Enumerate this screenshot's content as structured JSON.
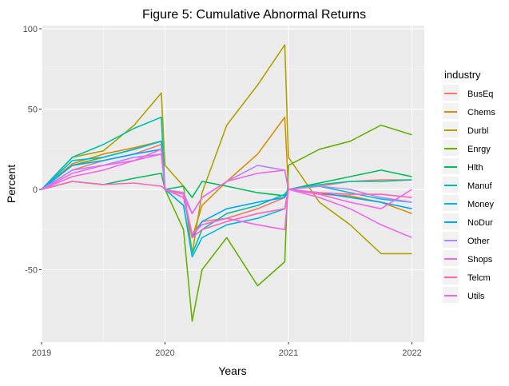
{
  "chart_data": {
    "type": "line",
    "title": "Figure 5: Cumulative Abnormal Returns",
    "xlabel": "Years",
    "ylabel": "Percent",
    "xlim": [
      2019.0,
      2022.1
    ],
    "ylim": [
      -95,
      102
    ],
    "x_ticks": [
      2019,
      2020,
      2021,
      2022
    ],
    "x_tick_labels": [
      "2019",
      "2020",
      "2021",
      "2022"
    ],
    "y_ticks": [
      -50,
      0,
      50,
      100
    ],
    "y_tick_labels": [
      "-50",
      "0",
      "50",
      "100"
    ],
    "grid": true,
    "legend": {
      "title": "industry",
      "placement": "right"
    },
    "series": [
      {
        "name": "BusEq",
        "color": "#F8766D",
        "points": [
          [
            2019.0,
            0
          ],
          [
            2019.25,
            12
          ],
          [
            2019.5,
            18
          ],
          [
            2019.75,
            22
          ],
          [
            2019.97,
            28
          ],
          [
            2020.0,
            0
          ],
          [
            2020.15,
            -3
          ],
          [
            2020.22,
            -28
          ],
          [
            2020.3,
            -20
          ],
          [
            2020.5,
            -18
          ],
          [
            2020.75,
            -12
          ],
          [
            2020.97,
            -5
          ],
          [
            2021.0,
            0
          ],
          [
            2021.25,
            2
          ],
          [
            2021.5,
            5
          ],
          [
            2021.75,
            6
          ],
          [
            2022.0,
            6
          ]
        ]
      },
      {
        "name": "Chems",
        "color": "#DB8E00",
        "points": [
          [
            2019.0,
            0
          ],
          [
            2019.25,
            16
          ],
          [
            2019.5,
            22
          ],
          [
            2019.75,
            26
          ],
          [
            2019.97,
            30
          ],
          [
            2020.0,
            0
          ],
          [
            2020.15,
            -3
          ],
          [
            2020.22,
            -30
          ],
          [
            2020.3,
            -10
          ],
          [
            2020.5,
            5
          ],
          [
            2020.75,
            22
          ],
          [
            2020.97,
            45
          ],
          [
            2021.0,
            0
          ],
          [
            2021.25,
            -3
          ],
          [
            2021.5,
            -4
          ],
          [
            2021.75,
            -8
          ],
          [
            2022.0,
            -15
          ]
        ]
      },
      {
        "name": "Durbl",
        "color": "#AEA200",
        "points": [
          [
            2019.0,
            0
          ],
          [
            2019.25,
            20
          ],
          [
            2019.5,
            24
          ],
          [
            2019.75,
            40
          ],
          [
            2019.97,
            60
          ],
          [
            2020.0,
            15
          ],
          [
            2020.15,
            2
          ],
          [
            2020.22,
            -40
          ],
          [
            2020.3,
            -2
          ],
          [
            2020.5,
            40
          ],
          [
            2020.75,
            65
          ],
          [
            2020.97,
            90
          ],
          [
            2021.0,
            20
          ],
          [
            2021.25,
            -8
          ],
          [
            2021.5,
            -22
          ],
          [
            2021.75,
            -40
          ],
          [
            2022.0,
            -40
          ]
        ]
      },
      {
        "name": "Enrgy",
        "color": "#64B200",
        "points": [
          [
            2019.0,
            0
          ],
          [
            2019.25,
            15
          ],
          [
            2019.5,
            20
          ],
          [
            2019.75,
            25
          ],
          [
            2019.97,
            30
          ],
          [
            2020.0,
            0
          ],
          [
            2020.15,
            -25
          ],
          [
            2020.22,
            -82
          ],
          [
            2020.3,
            -50
          ],
          [
            2020.5,
            -30
          ],
          [
            2020.75,
            -60
          ],
          [
            2020.97,
            -45
          ],
          [
            2021.0,
            15
          ],
          [
            2021.25,
            25
          ],
          [
            2021.5,
            30
          ],
          [
            2021.75,
            40
          ],
          [
            2022.0,
            34
          ]
        ]
      },
      {
        "name": "Hlth",
        "color": "#00BD5C",
        "points": [
          [
            2019.0,
            0
          ],
          [
            2019.25,
            5
          ],
          [
            2019.5,
            3
          ],
          [
            2019.75,
            7
          ],
          [
            2019.97,
            10
          ],
          [
            2020.0,
            0
          ],
          [
            2020.15,
            2
          ],
          [
            2020.22,
            -5
          ],
          [
            2020.3,
            5
          ],
          [
            2020.5,
            2
          ],
          [
            2020.75,
            -2
          ],
          [
            2020.97,
            -4
          ],
          [
            2021.0,
            0
          ],
          [
            2021.25,
            4
          ],
          [
            2021.5,
            8
          ],
          [
            2021.75,
            12
          ],
          [
            2022.0,
            8
          ]
        ]
      },
      {
        "name": "Manuf",
        "color": "#00C1A7",
        "points": [
          [
            2019.0,
            0
          ],
          [
            2019.25,
            20
          ],
          [
            2019.5,
            28
          ],
          [
            2019.75,
            38
          ],
          [
            2019.97,
            45
          ],
          [
            2020.0,
            0
          ],
          [
            2020.15,
            -10
          ],
          [
            2020.22,
            -40
          ],
          [
            2020.3,
            -25
          ],
          [
            2020.5,
            -15
          ],
          [
            2020.75,
            -10
          ],
          [
            2020.97,
            -3
          ],
          [
            2021.0,
            0
          ],
          [
            2021.25,
            3
          ],
          [
            2021.5,
            5
          ],
          [
            2021.75,
            5
          ],
          [
            2022.0,
            6
          ]
        ]
      },
      {
        "name": "Money",
        "color": "#00BADE",
        "points": [
          [
            2019.0,
            0
          ],
          [
            2019.25,
            18
          ],
          [
            2019.5,
            20
          ],
          [
            2019.75,
            25
          ],
          [
            2019.97,
            30
          ],
          [
            2020.0,
            0
          ],
          [
            2020.15,
            -10
          ],
          [
            2020.22,
            -42
          ],
          [
            2020.3,
            -30
          ],
          [
            2020.5,
            -22
          ],
          [
            2020.75,
            -18
          ],
          [
            2020.97,
            -12
          ],
          [
            2021.0,
            0
          ],
          [
            2021.25,
            2
          ],
          [
            2021.5,
            -2
          ],
          [
            2021.75,
            -6
          ],
          [
            2022.0,
            -8
          ]
        ]
      },
      {
        "name": "NoDur",
        "color": "#00A6FF",
        "points": [
          [
            2019.0,
            0
          ],
          [
            2019.25,
            15
          ],
          [
            2019.5,
            18
          ],
          [
            2019.75,
            22
          ],
          [
            2019.97,
            25
          ],
          [
            2020.0,
            0
          ],
          [
            2020.15,
            -5
          ],
          [
            2020.22,
            -30
          ],
          [
            2020.3,
            -20
          ],
          [
            2020.5,
            -12
          ],
          [
            2020.75,
            -8
          ],
          [
            2020.97,
            -5
          ],
          [
            2021.0,
            0
          ],
          [
            2021.25,
            -2
          ],
          [
            2021.5,
            -5
          ],
          [
            2021.75,
            -8
          ],
          [
            2022.0,
            -12
          ]
        ]
      },
      {
        "name": "Other",
        "color": "#B385FF",
        "points": [
          [
            2019.0,
            0
          ],
          [
            2019.25,
            12
          ],
          [
            2019.5,
            15
          ],
          [
            2019.75,
            20
          ],
          [
            2019.97,
            22
          ],
          [
            2020.0,
            0
          ],
          [
            2020.15,
            -2
          ],
          [
            2020.22,
            -15
          ],
          [
            2020.3,
            -5
          ],
          [
            2020.5,
            5
          ],
          [
            2020.75,
            15
          ],
          [
            2020.97,
            12
          ],
          [
            2021.0,
            0
          ],
          [
            2021.25,
            2
          ],
          [
            2021.5,
            0
          ],
          [
            2021.75,
            -5
          ],
          [
            2022.0,
            -8
          ]
        ]
      },
      {
        "name": "Shops",
        "color": "#EF67EB",
        "points": [
          [
            2019.0,
            0
          ],
          [
            2019.25,
            10
          ],
          [
            2019.5,
            15
          ],
          [
            2019.75,
            18
          ],
          [
            2019.97,
            22
          ],
          [
            2020.0,
            0
          ],
          [
            2020.15,
            -5
          ],
          [
            2020.22,
            -15
          ],
          [
            2020.3,
            -5
          ],
          [
            2020.5,
            5
          ],
          [
            2020.75,
            10
          ],
          [
            2020.97,
            12
          ],
          [
            2021.0,
            0
          ],
          [
            2021.25,
            -5
          ],
          [
            2021.5,
            -12
          ],
          [
            2021.75,
            -22
          ],
          [
            2022.0,
            -30
          ]
        ]
      },
      {
        "name": "Telcm",
        "color": "#FF63B6",
        "points": [
          [
            2019.0,
            0
          ],
          [
            2019.25,
            5
          ],
          [
            2019.5,
            3
          ],
          [
            2019.75,
            4
          ],
          [
            2019.97,
            2
          ],
          [
            2020.0,
            0
          ],
          [
            2020.15,
            -3
          ],
          [
            2020.22,
            -30
          ],
          [
            2020.3,
            -25
          ],
          [
            2020.5,
            -20
          ],
          [
            2020.75,
            -15
          ],
          [
            2020.97,
            -12
          ],
          [
            2021.0,
            0
          ],
          [
            2021.25,
            -2
          ],
          [
            2021.5,
            -3
          ],
          [
            2021.75,
            -3
          ],
          [
            2022.0,
            -5
          ]
        ]
      },
      {
        "name": "Utils",
        "color": "#F564E3",
        "points": [
          [
            2019.0,
            0
          ],
          [
            2019.25,
            8
          ],
          [
            2019.5,
            12
          ],
          [
            2019.75,
            18
          ],
          [
            2019.97,
            25
          ],
          [
            2020.0,
            0
          ],
          [
            2020.15,
            -5
          ],
          [
            2020.22,
            -28
          ],
          [
            2020.3,
            -22
          ],
          [
            2020.5,
            -18
          ],
          [
            2020.75,
            -22
          ],
          [
            2020.97,
            -25
          ],
          [
            2021.0,
            0
          ],
          [
            2021.25,
            -3
          ],
          [
            2021.5,
            -8
          ],
          [
            2021.75,
            -12
          ],
          [
            2022.0,
            0
          ]
        ]
      }
    ]
  }
}
